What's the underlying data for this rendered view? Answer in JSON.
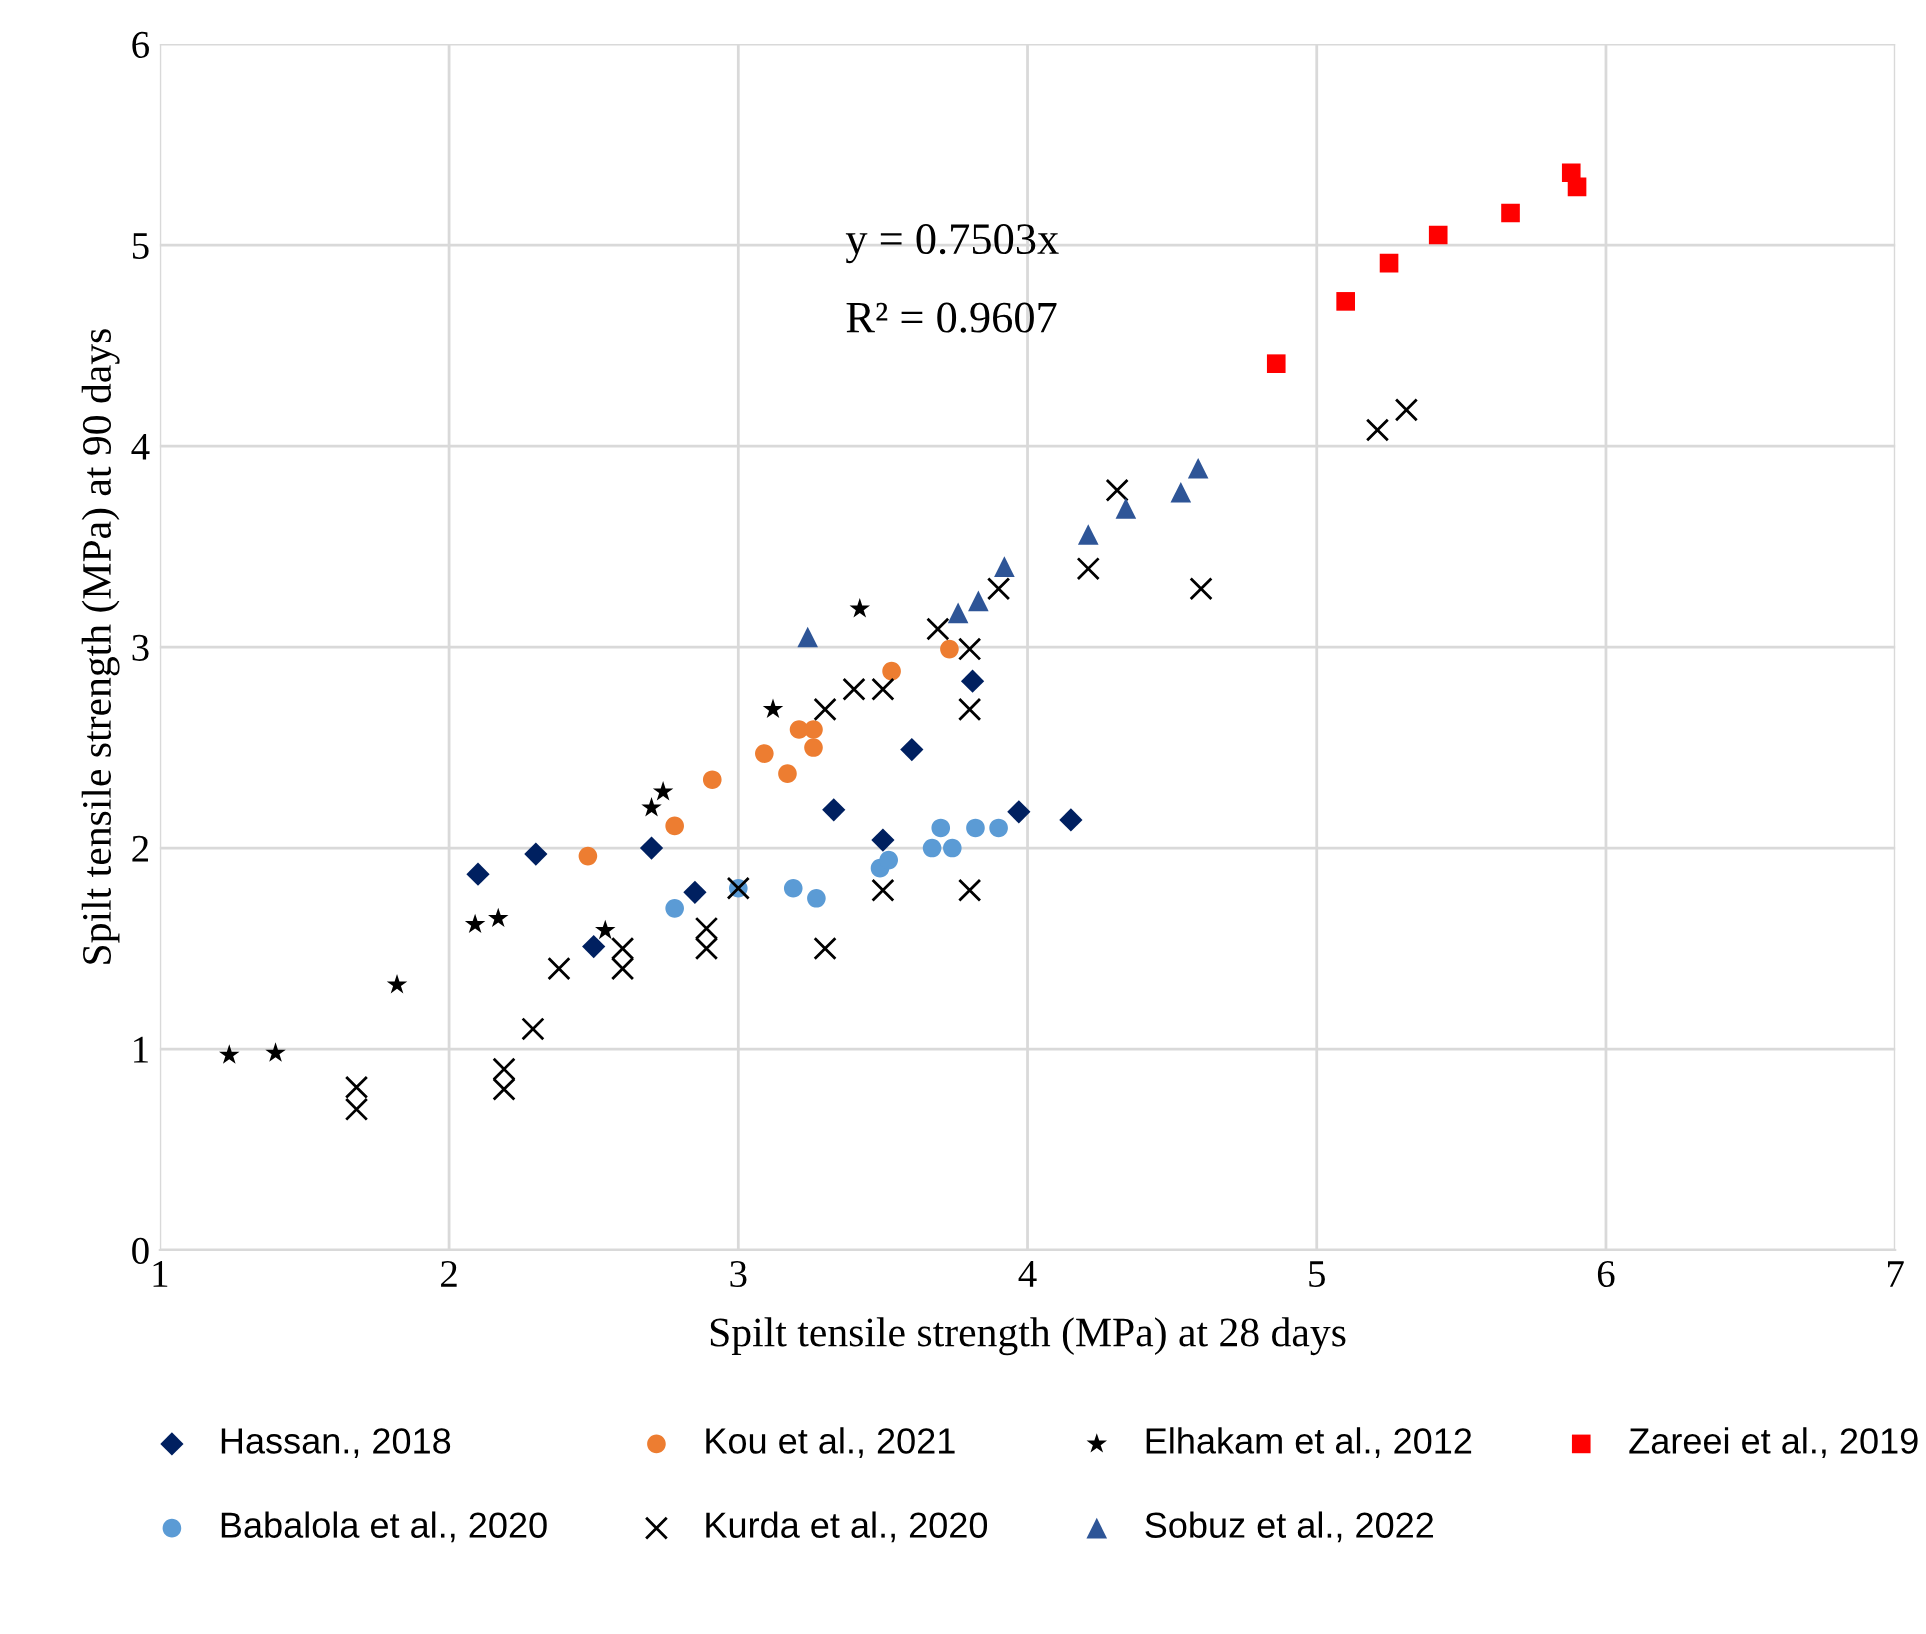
{
  "chart_data": {
    "type": "scatter",
    "xlabel": "Spilt tensile strength (MPa) at 28 days",
    "ylabel": "Spilt tensile strength (MPa) at 90 days",
    "annotations": [
      "y = 0.7503x",
      "R² = 0.9607"
    ],
    "xlim": [
      1,
      7
    ],
    "ylim": [
      0,
      6
    ],
    "xticks": [
      1,
      2,
      3,
      4,
      5,
      6,
      7
    ],
    "yticks": [
      0,
      1,
      2,
      3,
      4,
      5,
      6
    ],
    "grid": true,
    "legend": "bottom",
    "series": [
      {
        "name": "Hassan., 2018",
        "color": "#002060",
        "marker": "diamond",
        "x": [
          2.1,
          2.3,
          2.7,
          2.85,
          2.5,
          3.81,
          3.6,
          3.33,
          3.5,
          3.97,
          4.15
        ],
        "values": [
          1.87,
          1.97,
          2.0,
          1.78,
          1.51,
          2.83,
          2.49,
          2.19,
          2.04,
          2.18,
          2.14
        ]
      },
      {
        "name": "Kou et al., 2021",
        "color": "#ed7d31",
        "marker": "circle",
        "x": [
          2.48,
          2.78,
          2.91,
          3.09,
          3.17,
          3.21,
          3.26,
          3.26,
          3.53,
          3.73
        ],
        "values": [
          1.96,
          2.11,
          2.34,
          2.47,
          2.37,
          2.59,
          2.59,
          2.5,
          2.88,
          2.99
        ]
      },
      {
        "name": "Elhakam et al., 2012",
        "color": "#000000",
        "marker": "star",
        "x": [
          1.24,
          1.4,
          1.82,
          2.09,
          2.17,
          2.54,
          2.7,
          2.74,
          3.12,
          3.42
        ],
        "values": [
          0.97,
          0.98,
          1.32,
          1.62,
          1.65,
          1.59,
          2.2,
          2.28,
          2.69,
          3.19
        ]
      },
      {
        "name": "Zareei et al., 2019",
        "color": "#ff0000",
        "marker": "square",
        "x": [
          4.86,
          5.1,
          5.25,
          5.42,
          5.67,
          5.88,
          5.9
        ],
        "values": [
          4.41,
          4.72,
          4.91,
          5.05,
          5.16,
          5.36,
          5.29
        ]
      },
      {
        "name": "Babalola et al., 2020",
        "color": "#5b9bd5",
        "marker": "circle",
        "x": [
          2.78,
          3.0,
          3.19,
          3.27,
          3.49,
          3.52,
          3.67,
          3.74,
          3.7,
          3.82,
          3.9
        ],
        "values": [
          1.7,
          1.8,
          1.8,
          1.75,
          1.9,
          1.94,
          2.0,
          2.0,
          2.1,
          2.1,
          2.1
        ]
      },
      {
        "name": "Kurda et al., 2020",
        "color": "#000000",
        "marker": "cross",
        "x": [
          1.68,
          1.68,
          2.19,
          2.19,
          2.29,
          2.38,
          2.6,
          2.6,
          2.89,
          2.89,
          3.0,
          3.3,
          3.4,
          3.5,
          3.8,
          3.5,
          3.8,
          3.3,
          3.69,
          3.8,
          3.9,
          4.21,
          4.6,
          4.31,
          5.21,
          5.31
        ],
        "values": [
          0.81,
          0.7,
          0.9,
          0.8,
          1.1,
          1.4,
          1.5,
          1.4,
          1.6,
          1.5,
          1.8,
          2.69,
          2.79,
          2.79,
          2.69,
          1.79,
          1.79,
          1.5,
          3.09,
          2.99,
          3.29,
          3.39,
          3.29,
          3.78,
          4.08,
          4.18
        ]
      },
      {
        "name": "Sobuz et al., 2022",
        "color": "#2e5597",
        "marker": "triangle",
        "x": [
          3.24,
          3.76,
          3.83,
          3.92,
          4.21,
          4.34,
          4.53,
          4.59
        ],
        "values": [
          3.05,
          3.17,
          3.23,
          3.4,
          3.56,
          3.69,
          3.77,
          3.89
        ]
      }
    ]
  }
}
